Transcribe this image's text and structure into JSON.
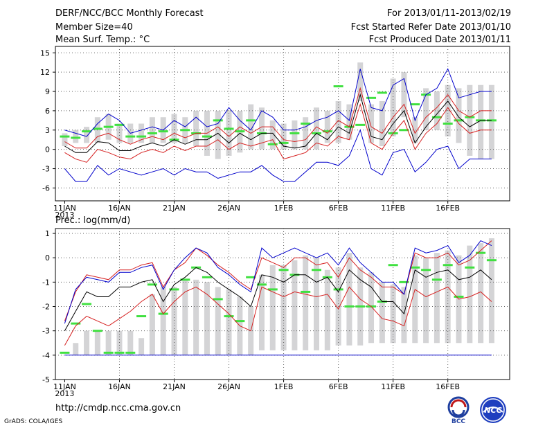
{
  "header": {
    "title": "DERF/NCC/BCC Monthly Forecast",
    "member_size": "Member Size=40",
    "period": "For 2013/01/11-2013/02/19",
    "start_date": "Fcst Started Refer Date 2013/01/10",
    "produced_date": "Fcst Produced Date 2013/01/11"
  },
  "footer": {
    "url": "http://cmdp.ncc.cma.gov.cn",
    "credit": "GrADS: COLA/IGES",
    "logo_bcc_text": "BCC",
    "logo_ncc_text": "NCC"
  },
  "colors": {
    "box": "#d4d4d6",
    "mean": "#000000",
    "spread": "#d62020",
    "extreme": "#0000cc",
    "obs": "#40e040",
    "grid": "#606060"
  },
  "chart_data": [
    {
      "id": "temperature",
      "type": "line",
      "ylabel": "Mean Surf. Temp.: °C",
      "ylim": [
        -8,
        16
      ],
      "yticks": [
        -6,
        -3,
        0,
        3,
        6,
        9,
        12,
        15
      ],
      "x_count": 40,
      "xtick_labels": [
        {
          "day": 1,
          "label": "11JAN",
          "sub": "2013"
        },
        {
          "day": 6,
          "label": "16JAN"
        },
        {
          "day": 11,
          "label": "21JAN"
        },
        {
          "day": 16,
          "label": "26JAN"
        },
        {
          "day": 21,
          "label": "1FEB"
        },
        {
          "day": 26,
          "label": "6FEB"
        },
        {
          "day": 31,
          "label": "11FEB"
        },
        {
          "day": 36,
          "label": "16FEB"
        }
      ],
      "series": [
        {
          "name": "ensemble mean",
          "role": "mean",
          "values": [
            0.5,
            -0.5,
            -0.5,
            1.2,
            1.0,
            -0.2,
            -0.2,
            0.5,
            1.0,
            0.5,
            1.5,
            0.8,
            1.5,
            1.5,
            2.5,
            1.0,
            2.5,
            1.5,
            2.5,
            2.5,
            0.5,
            0.2,
            0.5,
            2.5,
            1.5,
            3.5,
            2.5,
            8.5,
            2.0,
            1.5,
            4.0,
            6.0,
            1.0,
            3.5,
            5.5,
            7.5,
            5.0,
            3.5,
            4.5,
            4.5
          ]
        },
        {
          "name": "mean + spread",
          "role": "upper",
          "values": [
            1.2,
            0.2,
            0.2,
            2.0,
            2.5,
            1.5,
            0.8,
            1.5,
            2.0,
            1.5,
            2.5,
            1.8,
            2.5,
            2.5,
            3.5,
            2.0,
            3.5,
            2.5,
            3.5,
            3.5,
            1.5,
            1.2,
            1.5,
            3.5,
            2.5,
            4.5,
            3.5,
            9.5,
            3.5,
            2.5,
            5.0,
            7.0,
            2.5,
            5.0,
            6.5,
            8.5,
            6.0,
            5.0,
            6.0,
            6.0
          ]
        },
        {
          "name": "mean - spread",
          "role": "lower",
          "values": [
            -0.5,
            -1.5,
            -2.0,
            0.0,
            -0.5,
            -1.2,
            -1.5,
            -0.5,
            0.0,
            -0.5,
            0.5,
            -0.2,
            0.5,
            0.5,
            1.5,
            0.0,
            1.0,
            0.5,
            1.0,
            1.5,
            -1.5,
            -1.0,
            -0.5,
            1.0,
            0.5,
            2.0,
            1.5,
            7.0,
            1.0,
            0.0,
            2.5,
            4.5,
            0.0,
            2.5,
            4.0,
            6.5,
            4.0,
            2.5,
            3.0,
            3.0
          ]
        },
        {
          "name": "ensemble max",
          "role": "max",
          "values": [
            3.0,
            2.5,
            2.0,
            4.0,
            5.5,
            4.5,
            2.5,
            3.0,
            3.5,
            3.0,
            4.5,
            3.5,
            5.0,
            3.5,
            4.0,
            6.5,
            4.5,
            3.0,
            6.0,
            5.0,
            3.0,
            3.0,
            3.5,
            4.5,
            5.0,
            6.0,
            4.5,
            12.5,
            6.5,
            6.0,
            10.0,
            11.0,
            4.5,
            8.5,
            9.5,
            12.5,
            8.0,
            8.5,
            9.0,
            9.0
          ]
        },
        {
          "name": "ensemble min",
          "role": "min",
          "values": [
            -3.0,
            -5.0,
            -5.0,
            -2.5,
            -4.0,
            -3.0,
            -3.5,
            -4.0,
            -3.5,
            -3.0,
            -4.0,
            -3.0,
            -3.5,
            -3.5,
            -4.5,
            -4.0,
            -3.5,
            -3.5,
            -2.5,
            -4.0,
            -5.0,
            -5.0,
            -3.5,
            -2.0,
            -2.0,
            -2.5,
            -1.0,
            3.0,
            -3.0,
            -4.0,
            -0.5,
            0.0,
            -3.5,
            -2.0,
            0.0,
            0.5,
            -3.0,
            -1.5,
            -1.5,
            -1.5
          ]
        }
      ],
      "boxes": {
        "low": [
          0.5,
          1.0,
          1.0,
          1.0,
          1.5,
          1.0,
          1.0,
          1.0,
          1.0,
          1.0,
          1.0,
          1.0,
          0.5,
          -1.0,
          -1.5,
          -1.0,
          -0.5,
          0.0,
          0.0,
          0.0,
          0.0,
          0.0,
          0.0,
          0.0,
          1.0,
          1.0,
          1.5,
          7.5,
          1.0,
          0.5,
          2.0,
          5.0,
          1.0,
          3.0,
          3.0,
          2.0,
          1.0,
          -1.0,
          -1.5,
          -1.5
        ],
        "high": [
          2.5,
          3.0,
          3.5,
          5.0,
          5.5,
          4.0,
          4.0,
          4.0,
          5.0,
          5.0,
          5.5,
          5.0,
          6.0,
          6.0,
          6.0,
          6.0,
          6.0,
          7.0,
          6.5,
          4.5,
          4.0,
          4.5,
          5.0,
          6.5,
          6.0,
          7.5,
          7.0,
          13.5,
          7.0,
          7.5,
          11.0,
          12.0,
          5.0,
          9.5,
          9.0,
          10.0,
          9.5,
          10.0,
          10.0,
          10.0
        ]
      },
      "observed": [
        2.0,
        1.8,
        2.8,
        3.2,
        3.5,
        3.8,
        2.0,
        2.0,
        2.5,
        2.8,
        1.5,
        3.0,
        2.5,
        2.0,
        4.5,
        3.2,
        2.8,
        4.5,
        2.5,
        0.8,
        1.0,
        2.5,
        4.0,
        2.5,
        2.8,
        9.8,
        3.5,
        3.8,
        8.0,
        8.8,
        2.5,
        3.0,
        7.0,
        8.5,
        5.0,
        4.0,
        4.5,
        5.0,
        4.5,
        4.5
      ]
    },
    {
      "id": "precipitation",
      "type": "line",
      "ylabel": "Prec.: log(mm/d)",
      "ylim": [
        -5,
        1.2
      ],
      "yticks": [
        -5,
        -4,
        -3,
        -2,
        -1,
        0,
        1
      ],
      "x_count": 40,
      "xtick_labels": [
        {
          "day": 1,
          "label": "11JAN",
          "sub": "2013"
        },
        {
          "day": 6,
          "label": "16JAN"
        },
        {
          "day": 11,
          "label": "21JAN"
        },
        {
          "day": 16,
          "label": "26JAN"
        },
        {
          "day": 21,
          "label": "1FEB"
        },
        {
          "day": 26,
          "label": "6FEB"
        },
        {
          "day": 31,
          "label": "11FEB"
        },
        {
          "day": 36,
          "label": "16FEB"
        }
      ],
      "series": [
        {
          "name": "ensemble mean",
          "role": "mean",
          "values": [
            -3.0,
            -2.2,
            -1.4,
            -1.6,
            -1.6,
            -1.2,
            -1.2,
            -1.0,
            -0.9,
            -1.8,
            -1.1,
            -0.8,
            -0.4,
            -0.6,
            -1.0,
            -1.3,
            -1.6,
            -2.0,
            -0.7,
            -0.8,
            -1.0,
            -0.7,
            -0.7,
            -1.0,
            -0.8,
            -1.4,
            -0.5,
            -0.9,
            -1.2,
            -1.8,
            -1.8,
            -2.3,
            -0.5,
            -0.8,
            -0.6,
            -0.5,
            -0.9,
            -0.8,
            -0.5,
            -0.9
          ]
        },
        {
          "name": "mean + spread",
          "role": "upper",
          "values": [
            -2.6,
            -1.4,
            -0.7,
            -0.8,
            -0.9,
            -0.5,
            -0.5,
            -0.3,
            -0.2,
            -1.2,
            -0.5,
            -0.2,
            0.4,
            0.1,
            -0.3,
            -0.6,
            -1.0,
            -1.3,
            0.0,
            -0.2,
            -0.4,
            0.0,
            0.0,
            -0.3,
            -0.2,
            -0.8,
            0.0,
            -0.5,
            -0.8,
            -1.2,
            -1.2,
            -1.5,
            0.2,
            0.0,
            0.0,
            0.2,
            -0.3,
            -0.1,
            0.3,
            0.7
          ]
        },
        {
          "name": "mean - spread",
          "role": "lower",
          "values": [
            -3.6,
            -2.8,
            -2.4,
            -2.6,
            -2.8,
            -2.5,
            -2.2,
            -1.8,
            -1.5,
            -2.3,
            -1.8,
            -1.4,
            -1.2,
            -1.5,
            -1.9,
            -2.3,
            -2.8,
            -3.0,
            -1.2,
            -1.4,
            -1.6,
            -1.4,
            -1.5,
            -1.6,
            -1.5,
            -2.1,
            -1.2,
            -1.7,
            -2.0,
            -2.5,
            -2.6,
            -2.8,
            -1.3,
            -1.6,
            -1.4,
            -1.2,
            -1.7,
            -1.6,
            -1.4,
            -1.8
          ]
        },
        {
          "name": "ensemble max",
          "role": "max",
          "values": [
            -2.7,
            -1.3,
            -0.8,
            -0.9,
            -1.0,
            -0.6,
            -0.6,
            -0.4,
            -0.3,
            -1.3,
            -0.5,
            0.0,
            0.4,
            0.2,
            -0.4,
            -0.7,
            -1.1,
            -1.4,
            0.4,
            0.0,
            0.2,
            0.4,
            0.2,
            0.0,
            0.2,
            -0.3,
            0.4,
            -0.2,
            -0.6,
            -1.0,
            -1.0,
            -1.5,
            0.4,
            0.2,
            0.3,
            0.5,
            -0.2,
            0.1,
            0.7,
            0.5
          ]
        },
        {
          "name": "ensemble min",
          "role": "min",
          "values": [
            -4.0,
            -4.0,
            -4.0,
            -4.0,
            -4.0,
            -4.0,
            -4.0,
            -4.0,
            -4.0,
            -4.0,
            -4.0,
            -4.0,
            -4.0,
            -4.0,
            -4.0,
            -4.0,
            -4.0,
            -4.0,
            -4.0,
            -4.0,
            -4.0,
            -4.0,
            -4.0,
            -4.0,
            -4.0,
            -4.0,
            -4.0,
            -4.0,
            -4.0,
            -4.0,
            -4.0,
            -4.0,
            -4.0,
            -4.0,
            -4.0,
            -4.0,
            -4.0,
            -4.0,
            -4.0,
            -4.0
          ]
        }
      ],
      "boxes": {
        "low": [
          -4.0,
          -4.0,
          -4.0,
          -4.0,
          -4.0,
          -4.0,
          -4.0,
          -4.0,
          -4.0,
          -4.0,
          -4.0,
          -4.0,
          -4.0,
          -4.0,
          -4.0,
          -4.0,
          -4.0,
          -4.0,
          -3.8,
          -3.8,
          -3.8,
          -3.8,
          -3.8,
          -3.8,
          -3.8,
          -3.6,
          -3.6,
          -3.6,
          -3.5,
          -3.5,
          -3.5,
          -3.5,
          -3.5,
          -3.5,
          -3.5,
          -3.5,
          -3.5,
          -3.5,
          -3.5,
          -3.5
        ],
        "high": [
          -4.0,
          -3.5,
          -3.0,
          -3.0,
          -3.0,
          -3.0,
          -3.0,
          -3.3,
          -1.5,
          -1.2,
          -1.2,
          -0.9,
          -0.9,
          -1.0,
          -1.2,
          -1.3,
          -1.6,
          -2.0,
          -0.7,
          -0.3,
          -0.3,
          -0.1,
          0.1,
          0.0,
          -0.5,
          -0.4,
          0.2,
          -0.4,
          -0.6,
          -1.0,
          -1.1,
          -1.2,
          0.1,
          0.0,
          0.2,
          0.3,
          0.1,
          0.5,
          0.6,
          0.8
        ]
      },
      "observed": [
        -3.9,
        -2.7,
        -1.9,
        -3.0,
        -3.9,
        -3.9,
        -3.9,
        -2.4,
        -1.1,
        -2.3,
        -1.3,
        -0.9,
        -0.4,
        -0.8,
        -1.7,
        -2.4,
        -2.6,
        -0.8,
        -1.1,
        -1.3,
        -0.5,
        -0.7,
        -1.4,
        -0.5,
        -0.8,
        -1.3,
        -2.0,
        -2.0,
        -2.0,
        -1.8,
        -0.3,
        -1.0,
        -0.4,
        -0.5,
        -0.9,
        -0.3,
        -1.6,
        -0.4,
        0.2,
        -0.1
      ]
    }
  ]
}
